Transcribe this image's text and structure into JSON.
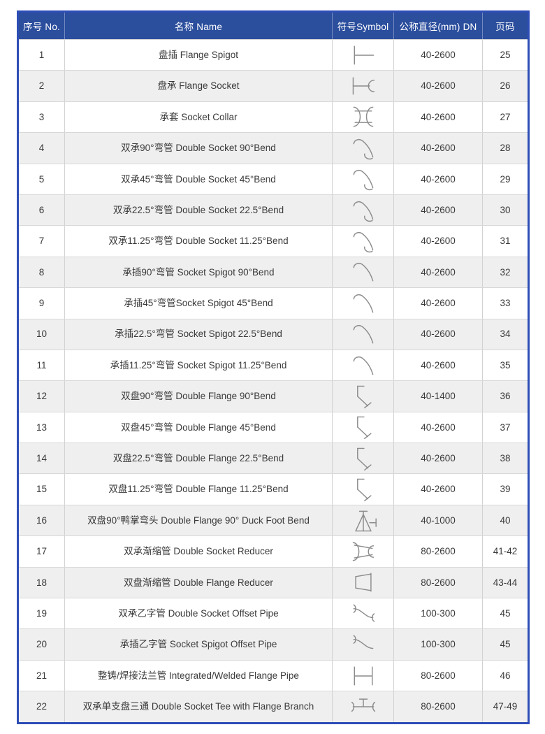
{
  "colors": {
    "header_bg": "#2b4e9d",
    "header_text": "#ffffff",
    "outer_border": "#2e4db6",
    "row_alt": "#efefef",
    "body_text": "#3a3a3a",
    "symbol_stroke": "#8c8c8c"
  },
  "table": {
    "headers": [
      "序号 No.",
      "名称 Name",
      "符号Symbol",
      "公称直径(mm) DN",
      "页码"
    ],
    "rows": [
      {
        "no": "1",
        "name": "盘插 Flange Spigot",
        "symbol": "flange-spigot",
        "dn": "40-2600",
        "page": "25"
      },
      {
        "no": "2",
        "name": "盘承 Flange Socket",
        "symbol": "flange-socket",
        "dn": "40-2600",
        "page": "26"
      },
      {
        "no": "3",
        "name": "承套 Socket Collar",
        "symbol": "socket-collar",
        "dn": "40-2600",
        "page": "27"
      },
      {
        "no": "4",
        "name": "双承90°弯管 Double Socket 90°Bend",
        "symbol": "double-socket-bend",
        "dn": "40-2600",
        "page": "28"
      },
      {
        "no": "5",
        "name": "双承45°弯管 Double Socket 45°Bend",
        "symbol": "double-socket-bend",
        "dn": "40-2600",
        "page": "29"
      },
      {
        "no": "6",
        "name": "双承22.5°弯管 Double Socket 22.5°Bend",
        "symbol": "double-socket-bend",
        "dn": "40-2600",
        "page": "30"
      },
      {
        "no": "7",
        "name": "双承11.25°弯管 Double Socket 11.25°Bend",
        "symbol": "double-socket-bend",
        "dn": "40-2600",
        "page": "31"
      },
      {
        "no": "8",
        "name": "承插90°弯管 Socket Spigot 90°Bend",
        "symbol": "socket-spigot-bend",
        "dn": "40-2600",
        "page": "32"
      },
      {
        "no": "9",
        "name": "承插45°弯管Socket Spigot 45°Bend",
        "symbol": "socket-spigot-bend",
        "dn": "40-2600",
        "page": "33"
      },
      {
        "no": "10",
        "name": "承插22.5°弯管 Socket Spigot 22.5°Bend",
        "symbol": "socket-spigot-bend",
        "dn": "40-2600",
        "page": "34"
      },
      {
        "no": "11",
        "name": "承插11.25°弯管 Socket Spigot 11.25°Bend",
        "symbol": "socket-spigot-bend",
        "dn": "40-2600",
        "page": "35"
      },
      {
        "no": "12",
        "name": "双盘90°弯管 Double Flange 90°Bend",
        "symbol": "double-flange-bend",
        "dn": "40-1400",
        "page": "36"
      },
      {
        "no": "13",
        "name": "双盘45°弯管 Double Flange 45°Bend",
        "symbol": "double-flange-bend",
        "dn": "40-2600",
        "page": "37"
      },
      {
        "no": "14",
        "name": "双盘22.5°弯管 Double Flange 22.5°Bend",
        "symbol": "double-flange-bend",
        "dn": "40-2600",
        "page": "38"
      },
      {
        "no": "15",
        "name": "双盘11.25°弯管 Double Flange 11.25°Bend",
        "symbol": "double-flange-bend",
        "dn": "40-2600",
        "page": "39"
      },
      {
        "no": "16",
        "name": "双盘90°鸭掌弯头 Double Flange 90° Duck Foot Bend",
        "symbol": "duck-foot-bend",
        "dn": "40-1000",
        "page": "40"
      },
      {
        "no": "17",
        "name": "双承渐缩管 Double Socket Reducer",
        "symbol": "double-socket-reducer",
        "dn": "80-2600",
        "page": "41-42"
      },
      {
        "no": "18",
        "name": "双盘渐缩管 Double Flange Reducer",
        "symbol": "double-flange-reducer",
        "dn": "80-2600",
        "page": "43-44"
      },
      {
        "no": "19",
        "name": "双承乙字管 Double Socket Offset Pipe",
        "symbol": "double-socket-offset",
        "dn": "100-300",
        "page": "45"
      },
      {
        "no": "20",
        "name": "承插乙字管 Socket Spigot Offset Pipe",
        "symbol": "socket-spigot-offset",
        "dn": "100-300",
        "page": "45"
      },
      {
        "no": "21",
        "name": "整铸/焊接法兰管  Integrated/Welded Flange Pipe",
        "symbol": "welded-flange-pipe",
        "dn": "80-2600",
        "page": "46"
      },
      {
        "no": "22",
        "name": "双承单支盘三通 Double Socket Tee with Flange Branch",
        "symbol": "double-socket-tee",
        "dn": "80-2600",
        "page": "47-49"
      }
    ]
  }
}
